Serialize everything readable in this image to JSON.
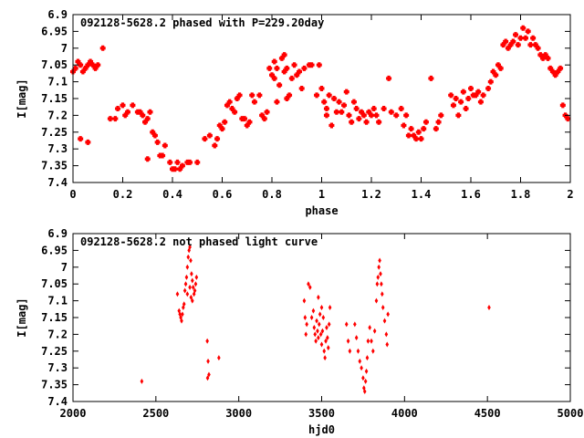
{
  "chart_data": [
    {
      "type": "scatter",
      "title": "092128-5628.2 phased with P=229.20day",
      "xlabel": "phase",
      "ylabel": "I[mag]",
      "xlim": [
        0,
        2
      ],
      "ylim": [
        7.4,
        6.9
      ],
      "y_inverted": true,
      "grid": false,
      "legend": "none",
      "marker_color": "#ff0000",
      "marker": "filled-diamond-cross",
      "x_ticks": [
        "0",
        "0.2",
        "0.4",
        "0.6",
        "0.8",
        "1",
        "1.2",
        "1.4",
        "1.6",
        "1.8",
        "2"
      ],
      "y_ticks": [
        "6.9",
        "6.95",
        "7",
        "7.05",
        "7.1",
        "7.15",
        "7.2",
        "7.25",
        "7.3",
        "7.35",
        "7.4"
      ],
      "points": [
        [
          0.0,
          7.07
        ],
        [
          0.01,
          7.06
        ],
        [
          0.02,
          7.04
        ],
        [
          0.03,
          7.05
        ],
        [
          0.04,
          7.07
        ],
        [
          0.05,
          7.06
        ],
        [
          0.06,
          7.05
        ],
        [
          0.07,
          7.04
        ],
        [
          0.08,
          7.05
        ],
        [
          0.09,
          7.06
        ],
        [
          0.1,
          7.05
        ],
        [
          0.12,
          7.0
        ],
        [
          0.03,
          7.27
        ],
        [
          0.06,
          7.28
        ],
        [
          0.15,
          7.21
        ],
        [
          0.17,
          7.21
        ],
        [
          0.18,
          7.18
        ],
        [
          0.2,
          7.17
        ],
        [
          0.21,
          7.2
        ],
        [
          0.22,
          7.19
        ],
        [
          0.24,
          7.17
        ],
        [
          0.26,
          7.19
        ],
        [
          0.27,
          7.19
        ],
        [
          0.28,
          7.2
        ],
        [
          0.29,
          7.22
        ],
        [
          0.3,
          7.21
        ],
        [
          0.31,
          7.19
        ],
        [
          0.32,
          7.25
        ],
        [
          0.33,
          7.26
        ],
        [
          0.34,
          7.28
        ],
        [
          0.35,
          7.32
        ],
        [
          0.36,
          7.32
        ],
        [
          0.37,
          7.29
        ],
        [
          0.39,
          7.34
        ],
        [
          0.4,
          7.36
        ],
        [
          0.41,
          7.36
        ],
        [
          0.42,
          7.34
        ],
        [
          0.43,
          7.36
        ],
        [
          0.44,
          7.35
        ],
        [
          0.46,
          7.34
        ],
        [
          0.47,
          7.34
        ],
        [
          0.5,
          7.34
        ],
        [
          0.3,
          7.33
        ],
        [
          0.53,
          7.27
        ],
        [
          0.55,
          7.26
        ],
        [
          0.57,
          7.29
        ],
        [
          0.58,
          7.27
        ],
        [
          0.59,
          7.23
        ],
        [
          0.6,
          7.24
        ],
        [
          0.61,
          7.22
        ],
        [
          0.62,
          7.17
        ],
        [
          0.63,
          7.16
        ],
        [
          0.64,
          7.18
        ],
        [
          0.65,
          7.19
        ],
        [
          0.66,
          7.15
        ],
        [
          0.67,
          7.14
        ],
        [
          0.68,
          7.21
        ],
        [
          0.69,
          7.21
        ],
        [
          0.7,
          7.23
        ],
        [
          0.71,
          7.22
        ],
        [
          0.72,
          7.14
        ],
        [
          0.73,
          7.16
        ],
        [
          0.75,
          7.14
        ],
        [
          0.76,
          7.2
        ],
        [
          0.77,
          7.21
        ],
        [
          0.78,
          7.19
        ],
        [
          0.79,
          7.06
        ],
        [
          0.8,
          7.08
        ],
        [
          0.81,
          7.04
        ],
        [
          0.81,
          7.09
        ],
        [
          0.82,
          7.06
        ],
        [
          0.82,
          7.16
        ],
        [
          0.83,
          7.11
        ],
        [
          0.84,
          7.03
        ],
        [
          0.85,
          7.02
        ],
        [
          0.85,
          7.07
        ],
        [
          0.86,
          7.06
        ],
        [
          0.86,
          7.15
        ],
        [
          0.87,
          7.14
        ],
        [
          0.88,
          7.09
        ],
        [
          0.89,
          7.05
        ],
        [
          0.9,
          7.08
        ],
        [
          0.91,
          7.07
        ],
        [
          0.92,
          7.12
        ],
        [
          0.93,
          7.06
        ],
        [
          0.95,
          7.05
        ],
        [
          0.96,
          7.05
        ],
        [
          0.98,
          7.14
        ],
        [
          0.99,
          7.05
        ],
        [
          1.0,
          7.12
        ],
        [
          1.01,
          7.16
        ],
        [
          1.02,
          7.18
        ],
        [
          1.02,
          7.2
        ],
        [
          1.03,
          7.14
        ],
        [
          1.04,
          7.23
        ],
        [
          1.05,
          7.15
        ],
        [
          1.06,
          7.19
        ],
        [
          1.07,
          7.16
        ],
        [
          1.08,
          7.19
        ],
        [
          1.09,
          7.17
        ],
        [
          1.1,
          7.13
        ],
        [
          1.11,
          7.2
        ],
        [
          1.12,
          7.22
        ],
        [
          1.13,
          7.16
        ],
        [
          1.14,
          7.18
        ],
        [
          1.15,
          7.21
        ],
        [
          1.16,
          7.19
        ],
        [
          1.17,
          7.2
        ],
        [
          1.18,
          7.22
        ],
        [
          1.19,
          7.19
        ],
        [
          1.2,
          7.2
        ],
        [
          1.21,
          7.18
        ],
        [
          1.22,
          7.2
        ],
        [
          1.23,
          7.22
        ],
        [
          1.25,
          7.18
        ],
        [
          1.27,
          7.09
        ],
        [
          1.28,
          7.19
        ],
        [
          1.3,
          7.2
        ],
        [
          1.32,
          7.18
        ],
        [
          1.33,
          7.23
        ],
        [
          1.34,
          7.2
        ],
        [
          1.35,
          7.26
        ],
        [
          1.36,
          7.24
        ],
        [
          1.37,
          7.26
        ],
        [
          1.38,
          7.27
        ],
        [
          1.39,
          7.25
        ],
        [
          1.4,
          7.27
        ],
        [
          1.41,
          7.24
        ],
        [
          1.42,
          7.22
        ],
        [
          1.44,
          7.09
        ],
        [
          1.46,
          7.24
        ],
        [
          1.47,
          7.22
        ],
        [
          1.48,
          7.2
        ],
        [
          1.52,
          7.14
        ],
        [
          1.53,
          7.17
        ],
        [
          1.54,
          7.15
        ],
        [
          1.55,
          7.2
        ],
        [
          1.56,
          7.16
        ],
        [
          1.57,
          7.13
        ],
        [
          1.58,
          7.18
        ],
        [
          1.59,
          7.15
        ],
        [
          1.6,
          7.12
        ],
        [
          1.61,
          7.14
        ],
        [
          1.62,
          7.14
        ],
        [
          1.63,
          7.13
        ],
        [
          1.64,
          7.16
        ],
        [
          1.65,
          7.14
        ],
        [
          1.67,
          7.12
        ],
        [
          1.68,
          7.1
        ],
        [
          1.69,
          7.07
        ],
        [
          1.7,
          7.08
        ],
        [
          1.71,
          7.05
        ],
        [
          1.72,
          7.06
        ],
        [
          1.73,
          6.99
        ],
        [
          1.74,
          6.98
        ],
        [
          1.75,
          7.0
        ],
        [
          1.76,
          6.99
        ],
        [
          1.77,
          6.98
        ],
        [
          1.78,
          6.96
        ],
        [
          1.79,
          6.99
        ],
        [
          1.8,
          6.97
        ],
        [
          1.81,
          6.94
        ],
        [
          1.82,
          6.97
        ],
        [
          1.83,
          6.95
        ],
        [
          1.84,
          6.99
        ],
        [
          1.85,
          6.97
        ],
        [
          1.86,
          6.99
        ],
        [
          1.87,
          7.0
        ],
        [
          1.88,
          7.02
        ],
        [
          1.89,
          7.03
        ],
        [
          1.9,
          7.02
        ],
        [
          1.91,
          7.03
        ],
        [
          1.92,
          7.06
        ],
        [
          1.93,
          7.07
        ],
        [
          1.94,
          7.08
        ],
        [
          1.95,
          7.07
        ],
        [
          1.96,
          7.06
        ],
        [
          1.97,
          7.17
        ],
        [
          1.98,
          7.2
        ],
        [
          1.99,
          7.21
        ]
      ]
    },
    {
      "type": "scatter",
      "title": "092128-5628.2 not phased light curve",
      "xlabel": "hjd0",
      "ylabel": "I[mag]",
      "xlim": [
        2000,
        5000
      ],
      "ylim": [
        7.4,
        6.9
      ],
      "y_inverted": true,
      "grid": false,
      "legend": "none",
      "marker_color": "#ff0000",
      "marker": "small-diamond",
      "x_ticks": [
        "2000",
        "2500",
        "3000",
        "3500",
        "4000",
        "4500",
        "5000"
      ],
      "y_ticks": [
        "6.9",
        "6.95",
        "7",
        "7.05",
        "7.1",
        "7.15",
        "7.2",
        "7.25",
        "7.3",
        "7.35",
        "7.4"
      ],
      "points": [
        [
          2415,
          7.34
        ],
        [
          2630,
          7.08
        ],
        [
          2640,
          7.13
        ],
        [
          2645,
          7.14
        ],
        [
          2650,
          7.15
        ],
        [
          2655,
          7.16
        ],
        [
          2660,
          7.14
        ],
        [
          2665,
          7.12
        ],
        [
          2670,
          7.11
        ],
        [
          2675,
          7.07
        ],
        [
          2680,
          7.05
        ],
        [
          2685,
          7.03
        ],
        [
          2690,
          7.0
        ],
        [
          2695,
          6.97
        ],
        [
          2700,
          6.95
        ],
        [
          2705,
          6.94
        ],
        [
          2710,
          6.98
        ],
        [
          2715,
          7.02
        ],
        [
          2720,
          7.04
        ],
        [
          2725,
          7.06
        ],
        [
          2730,
          7.08
        ],
        [
          2735,
          7.07
        ],
        [
          2740,
          7.05
        ],
        [
          2745,
          7.03
        ],
        [
          2705,
          7.06
        ],
        [
          2712,
          7.09
        ],
        [
          2720,
          7.1
        ],
        [
          2690,
          7.08
        ],
        [
          2810,
          7.22
        ],
        [
          2815,
          7.28
        ],
        [
          2820,
          7.32
        ],
        [
          2812,
          7.33
        ],
        [
          2880,
          7.27
        ],
        [
          3395,
          7.1
        ],
        [
          3400,
          7.15
        ],
        [
          3405,
          7.2
        ],
        [
          3410,
          7.17
        ],
        [
          3420,
          7.05
        ],
        [
          3430,
          7.06
        ],
        [
          3440,
          7.15
        ],
        [
          3450,
          7.13
        ],
        [
          3455,
          7.18
        ],
        [
          3460,
          7.2
        ],
        [
          3465,
          7.22
        ],
        [
          3470,
          7.16
        ],
        [
          3475,
          7.19
        ],
        [
          3480,
          7.21
        ],
        [
          3485,
          7.17
        ],
        [
          3490,
          7.14
        ],
        [
          3495,
          7.2
        ],
        [
          3500,
          7.23
        ],
        [
          3505,
          7.19
        ],
        [
          3510,
          7.15
        ],
        [
          3515,
          7.25
        ],
        [
          3520,
          7.27
        ],
        [
          3525,
          7.22
        ],
        [
          3530,
          7.18
        ],
        [
          3535,
          7.21
        ],
        [
          3540,
          7.24
        ],
        [
          3545,
          7.17
        ],
        [
          3550,
          7.12
        ],
        [
          3480,
          7.09
        ],
        [
          3500,
          7.12
        ],
        [
          3650,
          7.17
        ],
        [
          3660,
          7.22
        ],
        [
          3670,
          7.25
        ],
        [
          3700,
          7.17
        ],
        [
          3710,
          7.21
        ],
        [
          3720,
          7.25
        ],
        [
          3730,
          7.28
        ],
        [
          3740,
          7.3
        ],
        [
          3750,
          7.33
        ],
        [
          3755,
          7.36
        ],
        [
          3760,
          7.37
        ],
        [
          3765,
          7.34
        ],
        [
          3770,
          7.31
        ],
        [
          3775,
          7.27
        ],
        [
          3780,
          7.22
        ],
        [
          3790,
          7.18
        ],
        [
          3800,
          7.22
        ],
        [
          3810,
          7.25
        ],
        [
          3820,
          7.19
        ],
        [
          3830,
          7.1
        ],
        [
          3835,
          7.05
        ],
        [
          3840,
          7.03
        ],
        [
          3845,
          7.0
        ],
        [
          3850,
          6.98
        ],
        [
          3855,
          7.02
        ],
        [
          3860,
          7.05
        ],
        [
          3865,
          7.08
        ],
        [
          3870,
          7.12
        ],
        [
          3880,
          7.16
        ],
        [
          3890,
          7.2
        ],
        [
          3895,
          7.23
        ],
        [
          3900,
          7.14
        ],
        [
          4510,
          7.12
        ]
      ]
    }
  ]
}
